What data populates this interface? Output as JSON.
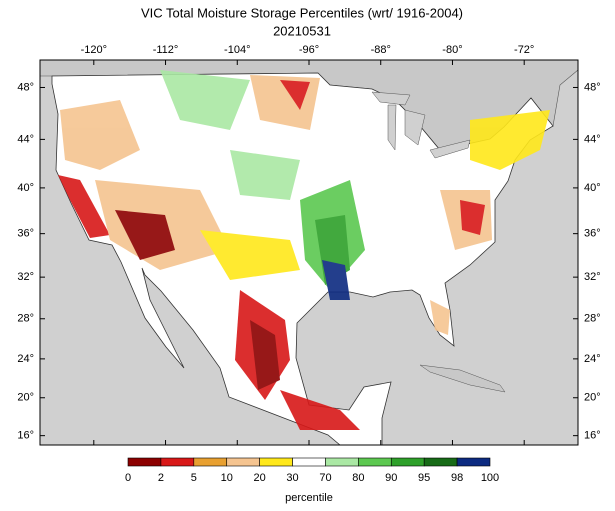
{
  "map": {
    "title": "VIC Total Moisture Storage Percentiles (wrt/ 1916-2004)",
    "subtitle": "20210531",
    "projection": "mercator",
    "lonlim": [
      -126,
      -66
    ],
    "latlim": [
      15,
      50
    ],
    "lonticks": [
      {
        "value": -120,
        "label": "-120°"
      },
      {
        "value": -112,
        "label": "-112°"
      },
      {
        "value": -104,
        "label": "-104°"
      },
      {
        "value": -96,
        "label": "-96°"
      },
      {
        "value": -88,
        "label": "-88°"
      },
      {
        "value": -80,
        "label": "-80°"
      },
      {
        "value": -72,
        "label": "-72°"
      }
    ],
    "latticks": [
      {
        "value": 48,
        "label": "48°"
      },
      {
        "value": 44,
        "label": "44°"
      },
      {
        "value": 40,
        "label": "40°"
      },
      {
        "value": 36,
        "label": "36°"
      },
      {
        "value": 32,
        "label": "32°"
      },
      {
        "value": 28,
        "label": "28°"
      },
      {
        "value": 24,
        "label": "24°"
      },
      {
        "value": 20,
        "label": "20°"
      },
      {
        "value": 16,
        "label": "16°"
      }
    ],
    "colorbar": {
      "bounds": [
        0,
        2,
        5,
        10,
        20,
        30,
        70,
        80,
        90,
        95,
        98,
        100
      ],
      "colors": [
        "#8c0000",
        "#d81818",
        "#e8a030",
        "#f5c490",
        "#ffe81a",
        "#ffffff",
        "#aae8a4",
        "#5cc850",
        "#2ea02a",
        "#176b17",
        "#0c2a80"
      ],
      "label": "percentile"
    }
  }
}
